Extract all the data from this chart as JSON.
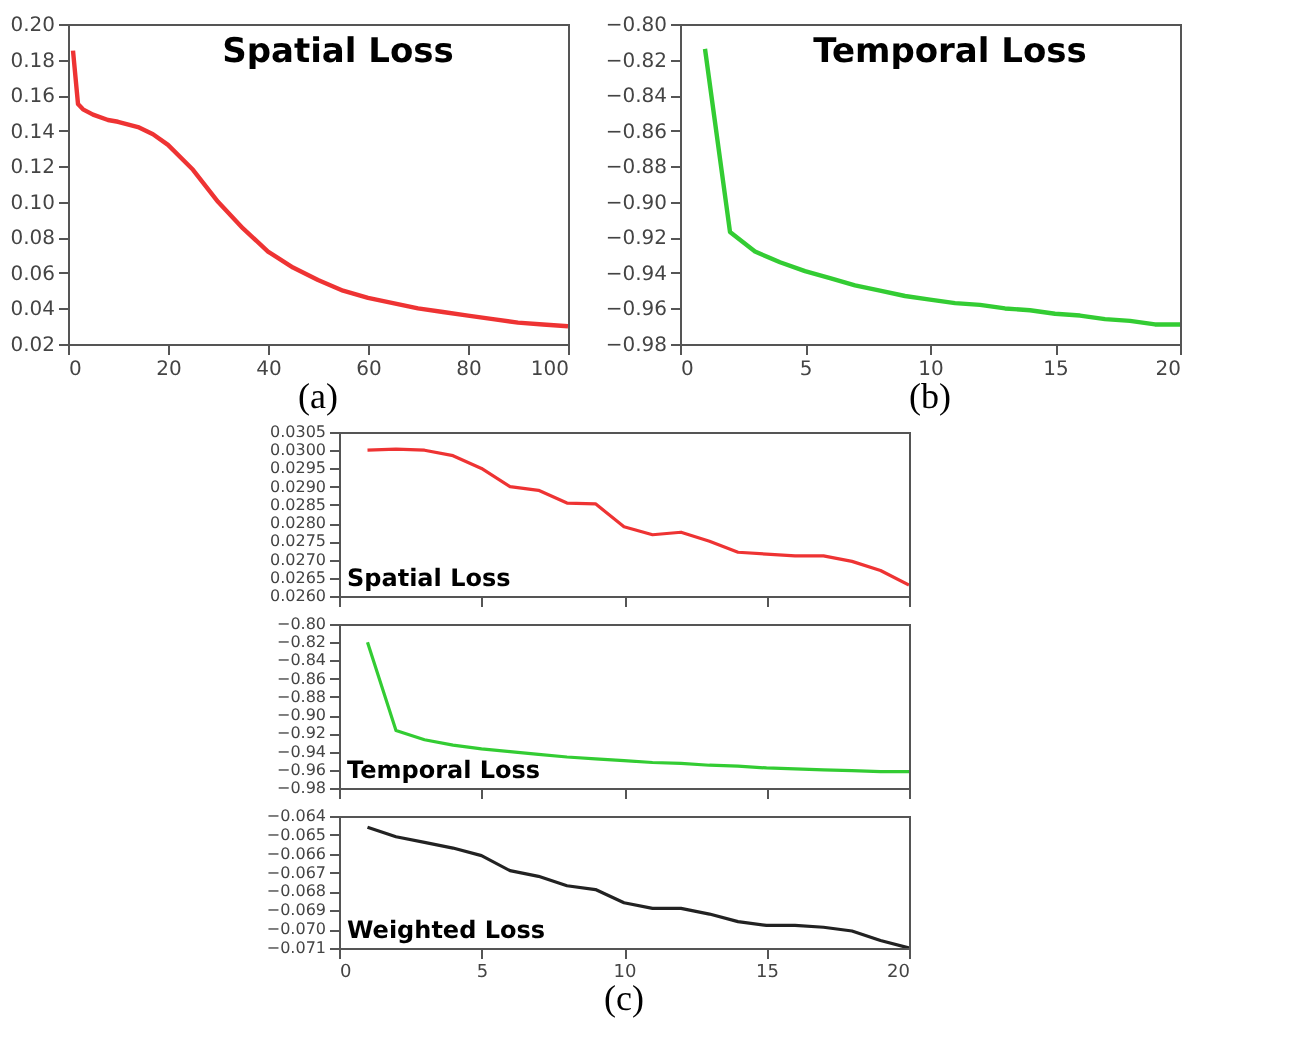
{
  "chart_data": [
    {
      "type": "line",
      "title": "Spatial Loss",
      "annotations": [
        "(a)"
      ],
      "x": [
        1,
        2,
        3,
        5,
        8,
        10,
        14,
        17,
        20,
        25,
        30,
        35,
        40,
        45,
        50,
        55,
        60,
        65,
        70,
        75,
        80,
        85,
        90,
        95,
        100
      ],
      "series": [
        {
          "color": "#ee3333",
          "values": [
            0.185,
            0.155,
            0.152,
            0.149,
            0.146,
            0.145,
            0.142,
            0.138,
            0.132,
            0.118,
            0.1,
            0.085,
            0.072,
            0.063,
            0.056,
            0.05,
            0.046,
            0.043,
            0.04,
            0.038,
            0.036,
            0.034,
            0.032,
            0.031,
            0.03
          ]
        }
      ],
      "xlim": [
        0,
        100
      ],
      "xticks": [
        0,
        20,
        40,
        60,
        80,
        100
      ],
      "ylim": [
        0.02,
        0.2
      ],
      "yticks": [
        0.02,
        0.04,
        0.06,
        0.08,
        {
          "value": 0.1,
          "label": "0.10"
        },
        0.12,
        0.14,
        0.16,
        0.18,
        {
          "value": 0.2,
          "label": "0.20"
        }
      ]
    },
    {
      "type": "line",
      "title": "Temporal Loss",
      "annotations": [
        "(b)"
      ],
      "x": [
        1,
        2,
        3,
        4,
        5,
        6,
        7,
        8,
        9,
        10,
        11,
        12,
        13,
        14,
        15,
        16,
        17,
        18,
        19,
        20
      ],
      "series": [
        {
          "color": "#33cc33",
          "values": [
            -0.814,
            -0.917,
            -0.928,
            -0.934,
            -0.939,
            -0.943,
            -0.947,
            -0.95,
            -0.953,
            -0.955,
            -0.957,
            -0.958,
            -0.96,
            -0.961,
            -0.963,
            -0.964,
            -0.966,
            -0.967,
            -0.969,
            -0.969
          ]
        }
      ],
      "xlim": [
        0,
        20
      ],
      "xticks": [
        0,
        5,
        10,
        15,
        20
      ],
      "ylim": [
        -0.98,
        -0.8
      ],
      "yticks": [
        {
          "value": -0.98,
          "label": "−0.98"
        },
        {
          "value": -0.96,
          "label": "−0.96"
        },
        {
          "value": -0.94,
          "label": "−0.94"
        },
        {
          "value": -0.92,
          "label": "−0.92"
        },
        {
          "value": -0.9,
          "label": "−0.90"
        },
        {
          "value": -0.88,
          "label": "−0.88"
        },
        {
          "value": -0.86,
          "label": "−0.86"
        },
        {
          "value": -0.84,
          "label": "−0.84"
        },
        {
          "value": -0.82,
          "label": "−0.82"
        },
        {
          "value": -0.8,
          "label": "−0.80"
        }
      ]
    },
    {
      "type": "line",
      "title": "Spatial Loss",
      "x": [
        1,
        2,
        3,
        4,
        5,
        6,
        7,
        8,
        9,
        10,
        11,
        12,
        13,
        14,
        15,
        16,
        17,
        18,
        19,
        20
      ],
      "series": [
        {
          "color": "#ee3333",
          "values": [
            0.03,
            0.03003,
            0.03,
            0.02985,
            0.0295,
            0.029,
            0.0289,
            0.02855,
            0.02853,
            0.0279,
            0.02768,
            0.02775,
            0.0275,
            0.0272,
            0.02715,
            0.0271,
            0.0271,
            0.02695,
            0.0267,
            0.0263
          ]
        }
      ],
      "xlim": [
        0,
        20
      ],
      "xticks": [
        0,
        5,
        10,
        15,
        20
      ],
      "ylim": [
        0.026,
        0.0305
      ],
      "tick_labels": "y",
      "yticks": [
        {
          "value": 0.026,
          "label": "0.0260"
        },
        0.0265,
        {
          "value": 0.027,
          "label": "0.0270"
        },
        0.0275,
        {
          "value": 0.028,
          "label": "0.0280"
        },
        0.0285,
        {
          "value": 0.029,
          "label": "0.0290"
        },
        0.0295,
        {
          "value": 0.03,
          "label": "0.0300"
        },
        0.0305
      ]
    },
    {
      "type": "line",
      "title": "Temporal Loss",
      "x": [
        1,
        2,
        3,
        4,
        5,
        6,
        7,
        8,
        9,
        10,
        11,
        12,
        13,
        14,
        15,
        16,
        17,
        18,
        19,
        20
      ],
      "series": [
        {
          "color": "#33cc33",
          "values": [
            -0.82,
            -0.917,
            -0.927,
            -0.933,
            -0.937,
            -0.94,
            -0.943,
            -0.946,
            -0.948,
            -0.95,
            -0.952,
            -0.953,
            -0.955,
            -0.956,
            -0.958,
            -0.959,
            -0.96,
            -0.961,
            -0.962,
            -0.962
          ]
        }
      ],
      "xlim": [
        0,
        20
      ],
      "xticks": [
        0,
        5,
        10,
        15,
        20
      ],
      "ylim": [
        -0.98,
        -0.8
      ],
      "tick_labels": "y",
      "yticks": [
        {
          "value": -0.98,
          "label": "−0.98"
        },
        {
          "value": -0.96,
          "label": "−0.96"
        },
        {
          "value": -0.94,
          "label": "−0.94"
        },
        {
          "value": -0.92,
          "label": "−0.92"
        },
        {
          "value": -0.9,
          "label": "−0.90"
        },
        {
          "value": -0.88,
          "label": "−0.88"
        },
        {
          "value": -0.86,
          "label": "−0.86"
        },
        {
          "value": -0.84,
          "label": "−0.84"
        },
        {
          "value": -0.82,
          "label": "−0.82"
        },
        {
          "value": -0.8,
          "label": "−0.80"
        }
      ]
    },
    {
      "type": "line",
      "title": "Weighted Loss",
      "annotations": [
        "(c)"
      ],
      "x": [
        1,
        2,
        3,
        4,
        5,
        6,
        7,
        8,
        9,
        10,
        11,
        12,
        13,
        14,
        15,
        16,
        17,
        18,
        19,
        20
      ],
      "series": [
        {
          "color": "#222222",
          "values": [
            -0.0646,
            -0.0651,
            -0.0654,
            -0.0657,
            -0.0661,
            -0.0669,
            -0.0672,
            -0.0677,
            -0.0679,
            -0.0686,
            -0.0689,
            -0.0689,
            -0.0692,
            -0.0696,
            -0.0698,
            -0.0698,
            -0.0699,
            -0.0701,
            -0.0706,
            -0.071
          ]
        }
      ],
      "xlim": [
        0,
        20
      ],
      "xticks": [
        0,
        5,
        10,
        15,
        20
      ],
      "ylim": [
        -0.071,
        -0.064
      ],
      "yticks": [
        {
          "value": -0.071,
          "label": "−0.071"
        },
        {
          "value": -0.07,
          "label": "−0.070"
        },
        {
          "value": -0.069,
          "label": "−0.069"
        },
        {
          "value": -0.068,
          "label": "−0.068"
        },
        {
          "value": -0.067,
          "label": "−0.067"
        },
        {
          "value": -0.066,
          "label": "−0.066"
        },
        {
          "value": -0.065,
          "label": "−0.065"
        },
        {
          "value": -0.064,
          "label": "−0.064"
        }
      ]
    }
  ]
}
